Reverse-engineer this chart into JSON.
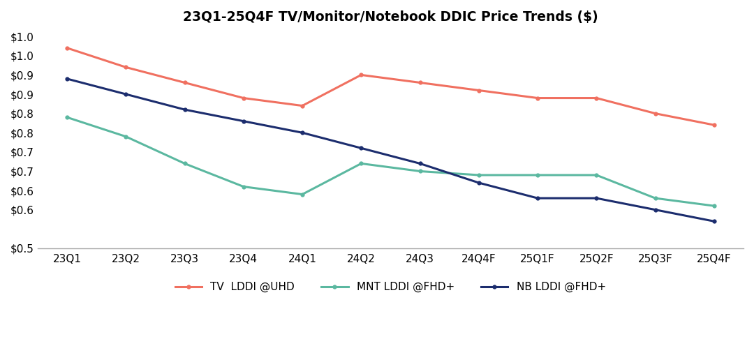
{
  "title": "23Q1-25Q4F TV/Monitor/Notebook DDIC Price Trends ($)",
  "x_labels": [
    "23Q1",
    "23Q2",
    "23Q3",
    "23Q4",
    "24Q1",
    "24Q2",
    "24Q3",
    "24Q4F",
    "25Q1F",
    "25Q2F",
    "25Q3F",
    "25Q4F"
  ],
  "tv_lddi": [
    1.02,
    0.97,
    0.93,
    0.89,
    0.87,
    0.95,
    0.93,
    0.91,
    0.89,
    0.89,
    0.85,
    0.82
  ],
  "mnt_lddi": [
    0.84,
    0.79,
    0.72,
    0.66,
    0.64,
    0.72,
    0.7,
    0.69,
    0.69,
    0.69,
    0.63,
    0.61
  ],
  "nb_lddi": [
    0.94,
    0.9,
    0.86,
    0.83,
    0.8,
    0.76,
    0.72,
    0.67,
    0.63,
    0.63,
    0.6,
    0.57
  ],
  "tv_color": "#F07060",
  "mnt_color": "#5BB8A0",
  "nb_color": "#1C2D6E",
  "bg_color": "#FFFFFF",
  "legend_tv": "TV  LDDI @UHD",
  "legend_mnt": "MNT LDDI @FHD+",
  "legend_nb": "NB LDDI @FHD+",
  "ytick_vals": [
    0.5,
    0.6,
    0.65,
    0.7,
    0.75,
    0.8,
    0.85,
    0.9,
    0.95,
    1.0,
    1.05
  ],
  "ytick_labels": [
    "$0.5",
    "$0.6",
    "$0.6",
    "$0.7",
    "$0.7",
    "$0.8",
    "$0.8",
    "$0.9",
    "$0.9",
    "$1.0",
    "$1.0"
  ],
  "ylim_low": 0.5,
  "ylim_high": 1.06
}
